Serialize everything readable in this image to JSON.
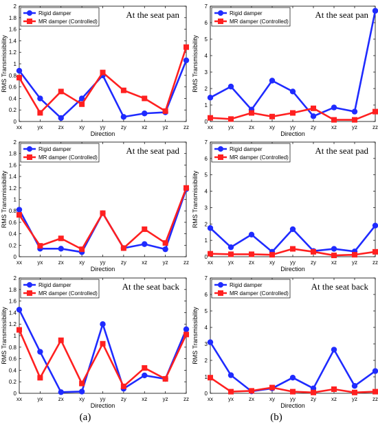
{
  "captions": {
    "a": "(a)",
    "b": "(b)"
  },
  "colors": {
    "rigid": "#1f2bff",
    "mr": "#ff2020"
  },
  "chart_data": [
    {
      "type": "line",
      "annotation": "At the seat pan",
      "xlabel": "Direction",
      "ylabel": "RMS Transmissibility",
      "categories": [
        "xx",
        "yx",
        "zx",
        "xy",
        "yy",
        "zy",
        "xz",
        "yz",
        "zz"
      ],
      "ylim": [
        0,
        2
      ],
      "yticks": [
        "0",
        "0.2",
        "0.4",
        "0.6",
        "0.8",
        "1",
        "1.2",
        "1.4",
        "1.6",
        "1.8",
        "2"
      ],
      "legend": "top-left",
      "series": [
        {
          "name": "Rigid damper",
          "values": [
            0.88,
            0.4,
            0.06,
            0.4,
            0.8,
            0.08,
            0.14,
            0.16,
            1.06
          ]
        },
        {
          "name": "MR damper (Controlled)",
          "values": [
            0.76,
            0.15,
            0.52,
            0.3,
            0.85,
            0.54,
            0.4,
            0.18,
            1.29
          ]
        }
      ]
    },
    {
      "type": "line",
      "annotation": "At the seat pan",
      "xlabel": "Direction",
      "ylabel": "RMS Transmissibility",
      "categories": [
        "xx",
        "yx",
        "zx",
        "xy",
        "yy",
        "zy",
        "xz",
        "yz",
        "zz"
      ],
      "ylim": [
        0,
        7
      ],
      "yticks": [
        "0",
        "1",
        "2",
        "3",
        "4",
        "5",
        "6",
        "7"
      ],
      "legend": "top-left",
      "series": [
        {
          "name": "Rigid damper",
          "values": [
            1.45,
            2.12,
            0.72,
            2.48,
            1.82,
            0.32,
            0.85,
            0.6,
            6.72
          ]
        },
        {
          "name": "MR damper (Controlled)",
          "values": [
            0.22,
            0.15,
            0.52,
            0.3,
            0.52,
            0.8,
            0.1,
            0.1,
            0.6
          ]
        }
      ]
    },
    {
      "type": "line",
      "annotation": "At the seat pad",
      "xlabel": "Direction",
      "ylabel": "RMS Transmissibility",
      "categories": [
        "xx",
        "yx",
        "zx",
        "xy",
        "yy",
        "zy",
        "xz",
        "yz",
        "zz"
      ],
      "ylim": [
        0,
        2
      ],
      "yticks": [
        "0",
        "0.2",
        "0.4",
        "0.6",
        "0.8",
        "1",
        "1.2",
        "1.4",
        "1.6",
        "1.8",
        "2"
      ],
      "legend": "top-left",
      "series": [
        {
          "name": "Rigid damper",
          "values": [
            0.82,
            0.14,
            0.14,
            0.08,
            0.76,
            0.15,
            0.22,
            0.13,
            1.18
          ]
        },
        {
          "name": "MR damper (Controlled)",
          "values": [
            0.73,
            0.19,
            0.32,
            0.13,
            0.76,
            0.15,
            0.48,
            0.24,
            1.2
          ]
        }
      ]
    },
    {
      "type": "line",
      "annotation": "At the seat pad",
      "xlabel": "Direction",
      "ylabel": "RMS Transmissibility",
      "categories": [
        "xx",
        "yx",
        "zx",
        "xy",
        "yy",
        "zy",
        "xz",
        "yz",
        "zz"
      ],
      "ylim": [
        0,
        7
      ],
      "yticks": [
        "0",
        "1",
        "2",
        "3",
        "4",
        "5",
        "6",
        "7"
      ],
      "legend": "top-left",
      "series": [
        {
          "name": "Rigid damper",
          "values": [
            1.75,
            0.58,
            1.35,
            0.3,
            1.68,
            0.35,
            0.48,
            0.32,
            1.9
          ]
        },
        {
          "name": "MR damper (Controlled)",
          "values": [
            0.18,
            0.15,
            0.15,
            0.12,
            0.48,
            0.3,
            0.08,
            0.12,
            0.3
          ]
        }
      ]
    },
    {
      "type": "line",
      "annotation": "At the seat back",
      "xlabel": "Direction",
      "ylabel": "RMS Transmissibility",
      "categories": [
        "xx",
        "yx",
        "zx",
        "xy",
        "yy",
        "zy",
        "xz",
        "yz",
        "zz"
      ],
      "ylim": [
        0,
        2
      ],
      "yticks": [
        "0",
        "0.2",
        "0.4",
        "0.6",
        "0.8",
        "1",
        "1.2",
        "1.4",
        "1.6",
        "1.8",
        "2"
      ],
      "legend": "top-left",
      "series": [
        {
          "name": "Rigid damper",
          "values": [
            1.45,
            0.72,
            0.02,
            0.03,
            1.2,
            0.08,
            0.31,
            0.25,
            1.11
          ]
        },
        {
          "name": "MR damper (Controlled)",
          "values": [
            1.1,
            0.27,
            0.92,
            0.17,
            0.86,
            0.12,
            0.44,
            0.25,
            1.02
          ]
        }
      ]
    },
    {
      "type": "line",
      "annotation": "At the seat back",
      "xlabel": "Direction",
      "ylabel": "RMS Transmissibility",
      "categories": [
        "xx",
        "yx",
        "zx",
        "xy",
        "yy",
        "zy",
        "xz",
        "yz",
        "zz"
      ],
      "ylim": [
        0,
        7
      ],
      "yticks": [
        "0",
        "1",
        "2",
        "3",
        "4",
        "5",
        "6",
        "7"
      ],
      "legend": "top-left",
      "series": [
        {
          "name": "Rigid damper",
          "values": [
            3.1,
            1.1,
            0.12,
            0.3,
            0.95,
            0.3,
            2.65,
            0.45,
            1.35
          ]
        },
        {
          "name": "MR damper (Controlled)",
          "values": [
            0.95,
            0.1,
            0.15,
            0.35,
            0.1,
            0.05,
            0.25,
            0.05,
            0.1
          ]
        }
      ]
    }
  ]
}
